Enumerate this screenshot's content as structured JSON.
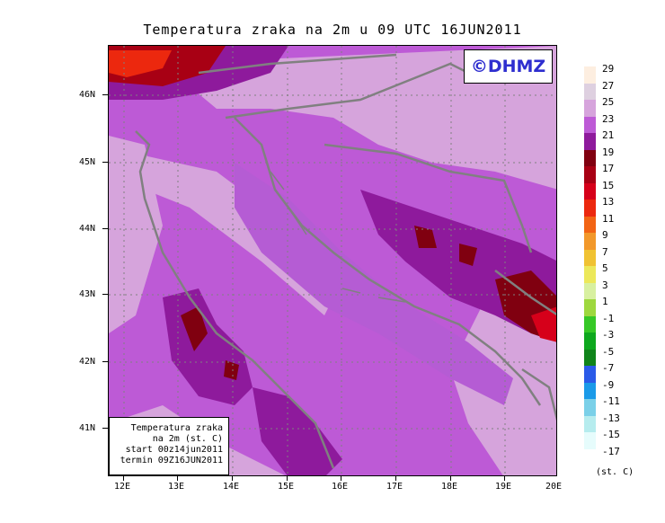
{
  "title": "Temperatura zraka na 2m u 09 UTC 16JUN2011",
  "logo": "©DHMZ",
  "info_box": {
    "line1": "Temperatura zraka",
    "line2": "na 2m (st. C)",
    "line3": "start 00z14jun2011",
    "line4": "termin 09Z16JUN2011"
  },
  "latitude_labels": [
    "46N",
    "45N",
    "44N",
    "43N",
    "42N",
    "41N"
  ],
  "longitude_labels": [
    "12E",
    "13E",
    "14E",
    "15E",
    "16E",
    "17E",
    "18E",
    "19E",
    "20E"
  ],
  "legend": {
    "unit": "(st. C)",
    "labels": [
      "29",
      "27",
      "25",
      "23",
      "21",
      "19",
      "17",
      "15",
      "13",
      "11",
      "9",
      "7",
      "5",
      "3",
      "1",
      "-1",
      "-3",
      "-5",
      "-7",
      "-9",
      "-11",
      "-13",
      "-15",
      "-17"
    ],
    "colors": [
      "#fdeee0",
      "#ded0e0",
      "#d6a4dc",
      "#bd5ad6",
      "#8e1a9c",
      "#800010",
      "#a80014",
      "#d6001a",
      "#ec280e",
      "#f26414",
      "#f2982a",
      "#f0c232",
      "#ece85a",
      "#d8f0a0",
      "#9ed83e",
      "#36c826",
      "#0ea81e",
      "#10841a",
      "#2a5ae8",
      "#1a9ae8",
      "#7ad0e8",
      "#b6ecee",
      "#e6fcfc"
    ]
  },
  "colors": {
    "land_base": "#bd5ad6",
    "sea": "#b55cd4",
    "warm": "#8e1a9c",
    "hot": "#800010",
    "cool": "#d6a4dc",
    "coast": "#808080",
    "logo_text": "#2e2ecf"
  }
}
